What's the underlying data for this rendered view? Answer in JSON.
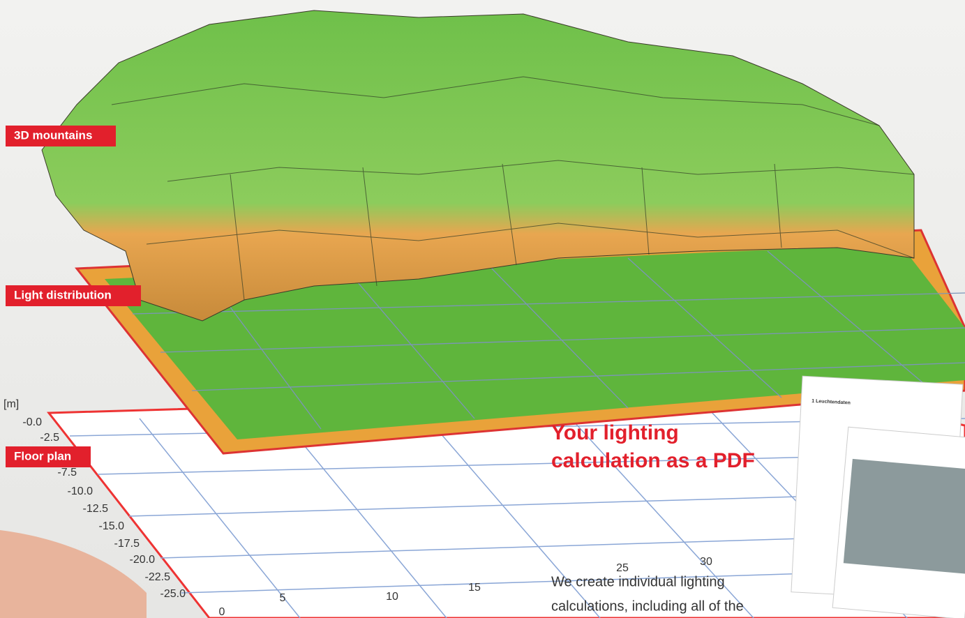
{
  "labels": {
    "mountains": "3D mountains",
    "distribution": "Light distribution",
    "floor": "Floor plan"
  },
  "axis": {
    "unit": "[m]",
    "y_labels": [
      "-0.0",
      "-2.5",
      "-7.5",
      "-10.0",
      "-12.5",
      "-15.0",
      "-17.5",
      "-20.0",
      "-22.5",
      "-25.0"
    ],
    "x_labels": [
      "0",
      "5",
      "10",
      "15",
      "25",
      "30"
    ]
  },
  "promo": {
    "heading_line1": "Your lighting",
    "heading_line2": "calculation as a PDF",
    "body_line1": "We create individual lighting",
    "body_line2": "calculations, including all of the"
  },
  "pdf": {
    "section": "1 Leuchtendaten"
  }
}
